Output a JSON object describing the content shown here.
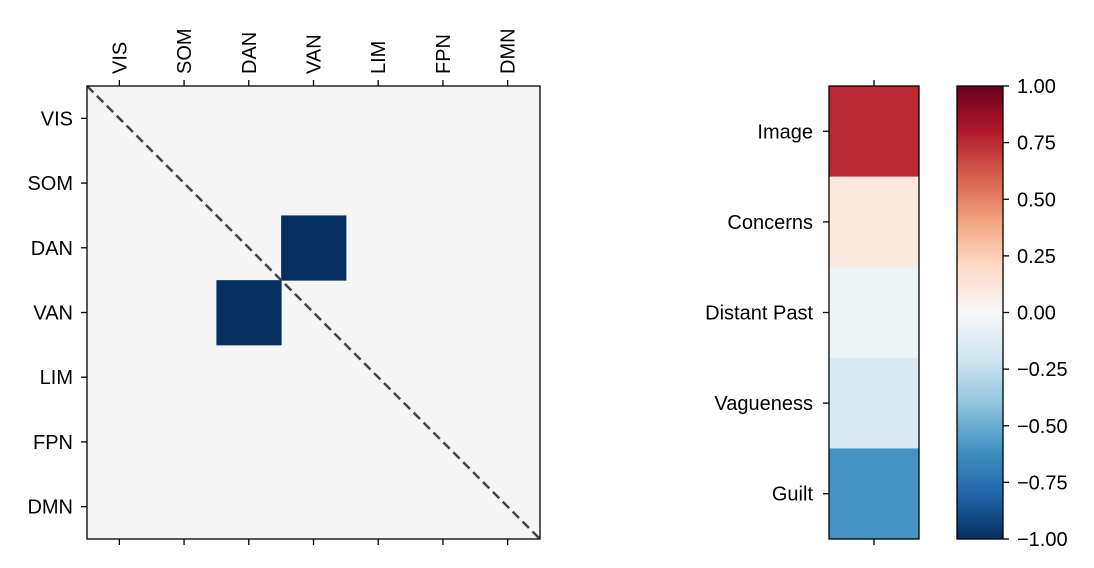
{
  "chart_data": [
    {
      "type": "heatmap",
      "title": "",
      "xlabel": "",
      "ylabel": "",
      "rows": [
        "VIS",
        "SOM",
        "DAN",
        "VAN",
        "LIM",
        "FPN",
        "DMN"
      ],
      "columns": [
        "VIS",
        "SOM",
        "DAN",
        "VAN",
        "LIM",
        "FPN",
        "DMN"
      ],
      "x_tick_position": "top",
      "diagonal_line": "dashed",
      "background_color": "#f5f5f5",
      "values": [
        [
          0,
          0,
          0,
          0,
          0,
          0,
          0
        ],
        [
          0,
          0,
          0,
          0,
          0,
          0,
          0
        ],
        [
          0,
          0,
          0,
          -1,
          0,
          0,
          0
        ],
        [
          0,
          0,
          -1,
          0,
          0,
          0,
          0
        ],
        [
          0,
          0,
          0,
          0,
          0,
          0,
          0
        ],
        [
          0,
          0,
          0,
          0,
          0,
          0,
          0
        ],
        [
          0,
          0,
          0,
          0,
          0,
          0,
          0
        ]
      ]
    },
    {
      "type": "heatmap",
      "title": "",
      "xlabel": "",
      "ylabel": "",
      "rows": [
        "Image",
        "Concerns",
        "Distant Past",
        "Vagueness",
        "Guilt"
      ],
      "values": [
        0.75,
        0.1,
        -0.05,
        -0.15,
        -0.6
      ]
    }
  ],
  "colorbar": {
    "colormap": "RdBu_r",
    "range": [
      -1,
      1
    ],
    "ticks": [
      "1.00",
      "0.75",
      "0.50",
      "0.25",
      "0.00",
      "−0.25",
      "−0.50",
      "−0.75",
      "−1.00"
    ]
  }
}
